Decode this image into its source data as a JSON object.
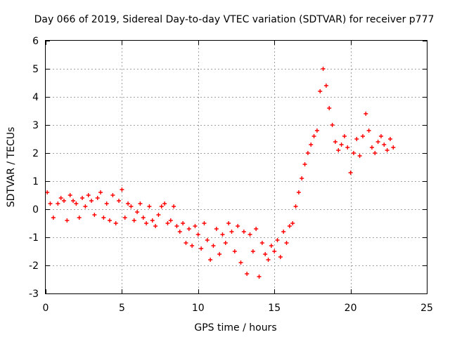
{
  "chart_data": {
    "type": "scatter",
    "title": "Day 066 of 2019, Sidereal Day-to-day VTEC variation (SDTVAR) for receiver p777",
    "xlabel": "GPS time / hours",
    "ylabel": "SDTVAR / TECUs",
    "xlim": [
      0,
      25
    ],
    "ylim": [
      -3,
      6
    ],
    "xticks": [
      "0",
      "5",
      "10",
      "15",
      "20",
      "25"
    ],
    "yticks": [
      "-3",
      "-2",
      "-1",
      "0",
      "1",
      "2",
      "3",
      "4",
      "5",
      "6"
    ],
    "grid": true,
    "marker": "+",
    "color": "#ff0000",
    "series": [
      {
        "name": "SDTVAR",
        "x": [
          0.1,
          0.3,
          0.5,
          0.8,
          1.0,
          1.2,
          1.4,
          1.6,
          1.8,
          2.0,
          2.2,
          2.4,
          2.6,
          2.8,
          3.0,
          3.2,
          3.4,
          3.6,
          3.8,
          4.0,
          4.2,
          4.4,
          4.6,
          4.8,
          5.0,
          5.2,
          5.4,
          5.6,
          5.8,
          6.0,
          6.2,
          6.4,
          6.6,
          6.8,
          7.0,
          7.2,
          7.4,
          7.6,
          7.8,
          8.0,
          8.2,
          8.4,
          8.6,
          8.8,
          9.0,
          9.2,
          9.4,
          9.6,
          9.8,
          10.0,
          10.2,
          10.4,
          10.6,
          10.8,
          11.0,
          11.2,
          11.4,
          11.6,
          11.8,
          12.0,
          12.2,
          12.4,
          12.6,
          12.8,
          13.0,
          13.2,
          13.4,
          13.6,
          13.8,
          14.0,
          14.2,
          14.4,
          14.6,
          14.8,
          15.0,
          15.2,
          15.4,
          15.6,
          15.8,
          16.0,
          16.2,
          16.4,
          16.6,
          16.8,
          17.0,
          17.2,
          17.4,
          17.6,
          17.8,
          18.0,
          18.2,
          18.4,
          18.6,
          18.8,
          19.0,
          19.2,
          19.4,
          19.6,
          19.8,
          20.0,
          20.2,
          20.4,
          20.6,
          20.8,
          21.0,
          21.2,
          21.4,
          21.6,
          21.8,
          22.0,
          22.2,
          22.4,
          22.6,
          22.8
        ],
        "y": [
          0.6,
          0.2,
          -0.3,
          0.2,
          0.4,
          0.3,
          -0.4,
          0.5,
          0.3,
          0.2,
          -0.3,
          0.4,
          0.1,
          0.5,
          0.3,
          -0.2,
          0.4,
          0.6,
          -0.3,
          0.2,
          -0.4,
          0.5,
          -0.5,
          0.3,
          0.7,
          -0.3,
          0.2,
          0.1,
          -0.4,
          -0.1,
          0.2,
          -0.3,
          -0.5,
          0.1,
          -0.4,
          -0.6,
          -0.2,
          0.1,
          0.2,
          -0.5,
          -0.4,
          0.1,
          -0.6,
          -0.8,
          -0.5,
          -1.2,
          -0.7,
          -1.3,
          -0.6,
          -0.9,
          -1.4,
          -0.5,
          -1.1,
          -1.8,
          -1.3,
          -0.7,
          -1.6,
          -0.9,
          -1.2,
          -0.5,
          -0.8,
          -1.5,
          -0.6,
          -1.9,
          -0.8,
          -2.3,
          -0.9,
          -1.5,
          -0.7,
          -2.4,
          -1.2,
          -1.6,
          -1.8,
          -1.3,
          -1.5,
          -1.1,
          -1.7,
          -0.8,
          -1.2,
          -0.6,
          -0.5,
          0.1,
          0.6,
          1.1,
          1.6,
          2.0,
          2.3,
          2.6,
          2.8,
          4.2,
          5.0,
          4.4,
          3.6,
          3.0,
          2.4,
          2.1,
          2.3,
          2.6,
          2.2,
          1.3,
          2.0,
          2.5,
          1.9,
          2.6,
          3.4,
          2.8,
          2.2,
          2.0,
          2.4,
          2.6,
          2.3,
          2.1,
          2.5,
          2.2
        ]
      }
    ]
  }
}
